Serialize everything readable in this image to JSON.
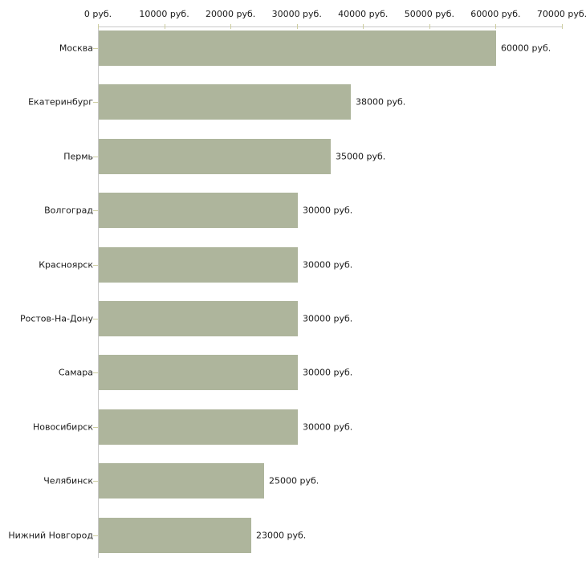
{
  "chart_data": {
    "type": "bar",
    "orientation": "horizontal",
    "title": "",
    "categories": [
      "Москва",
      "Екатеринбург",
      "Пермь",
      "Волгоград",
      "Красноярск",
      "Ростов-На-Дону",
      "Самара",
      "Новосибирск",
      "Челябинск",
      "Нижний Новгород"
    ],
    "values": [
      60000,
      38000,
      35000,
      30000,
      30000,
      30000,
      30000,
      30000,
      25000,
      23000
    ],
    "value_labels": [
      "60000 руб.",
      "38000 руб.",
      "35000 руб.",
      "30000 руб.",
      "30000 руб.",
      "30000 руб.",
      "30000 руб.",
      "30000 руб.",
      "25000 руб.",
      "23000 руб."
    ],
    "x_ticks": [
      {
        "value": 0,
        "label": "0 руб."
      },
      {
        "value": 10000,
        "label": "10000 руб."
      },
      {
        "value": 20000,
        "label": "20000 руб."
      },
      {
        "value": 30000,
        "label": "30000 руб."
      },
      {
        "value": 40000,
        "label": "40000 руб."
      },
      {
        "value": 50000,
        "label": "50000 руб."
      },
      {
        "value": 60000,
        "label": "60000 руб."
      },
      {
        "value": 70000,
        "label": "70000 руб."
      }
    ],
    "xlim": [
      0,
      70000
    ],
    "unit": "руб.",
    "grid": false,
    "legend": "none",
    "colors": {
      "bar": "#aeb59c",
      "axis": "#c9c9c9",
      "tick": "#cdcd9f",
      "text": "#1a1a1a",
      "background": "#ffffff"
    }
  }
}
